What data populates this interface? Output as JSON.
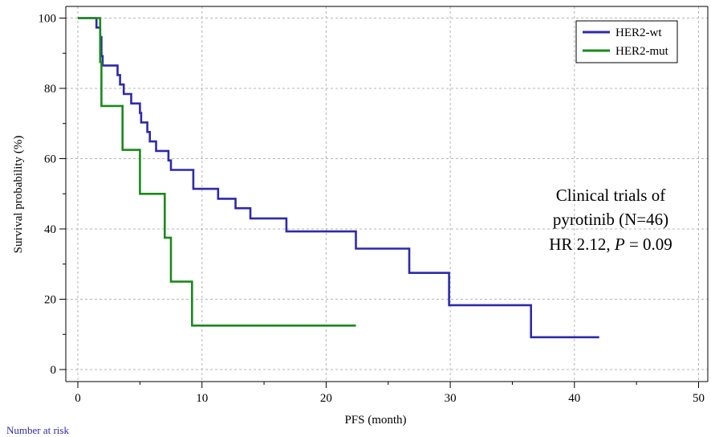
{
  "chart_data": {
    "type": "line",
    "subtype": "kaplan-meier step",
    "xlabel": "PFS (month)",
    "ylabel": "Survival probability (%)",
    "xlim": [
      0,
      50
    ],
    "ylim": [
      0,
      100
    ],
    "xticks": [
      "0",
      "10",
      "20",
      "30",
      "40",
      "50"
    ],
    "yticks": [
      "0",
      "20",
      "40",
      "60",
      "80",
      "100"
    ],
    "grid": true,
    "legend_position": "top-right",
    "annotation": {
      "line1": "Clinical trials of",
      "line2": "pyrotinib (N=46)",
      "line3_prefix": "HR 2.12, ",
      "line3_italic": "P",
      "line3_suffix": " = 0.09"
    },
    "series": [
      {
        "name": "HER2-wt",
        "color": "#2e2aa8",
        "points": [
          [
            0,
            100
          ],
          [
            1.5,
            100
          ],
          [
            1.5,
            97.3
          ],
          [
            1.8,
            97.3
          ],
          [
            1.8,
            94.6
          ],
          [
            1.9,
            94.6
          ],
          [
            1.9,
            89.2
          ],
          [
            2.0,
            89.2
          ],
          [
            2.0,
            86.5
          ],
          [
            3.2,
            86.5
          ],
          [
            3.2,
            83.8
          ],
          [
            3.4,
            83.8
          ],
          [
            3.4,
            81.1
          ],
          [
            3.7,
            81.1
          ],
          [
            3.7,
            78.4
          ],
          [
            4.3,
            78.4
          ],
          [
            4.3,
            75.7
          ],
          [
            5.0,
            75.7
          ],
          [
            5.0,
            73.0
          ],
          [
            5.1,
            73.0
          ],
          [
            5.1,
            70.3
          ],
          [
            5.6,
            70.3
          ],
          [
            5.6,
            67.6
          ],
          [
            5.8,
            67.6
          ],
          [
            5.8,
            64.9
          ],
          [
            6.3,
            64.9
          ],
          [
            6.3,
            62.2
          ],
          [
            7.3,
            62.2
          ],
          [
            7.3,
            59.5
          ],
          [
            7.5,
            59.5
          ],
          [
            7.5,
            56.8
          ],
          [
            9.3,
            56.8
          ],
          [
            9.3,
            51.4
          ],
          [
            11.3,
            51.4
          ],
          [
            11.3,
            48.6
          ],
          [
            12.7,
            48.6
          ],
          [
            12.7,
            45.9
          ],
          [
            13.9,
            45.9
          ],
          [
            13.9,
            43.0
          ],
          [
            16.8,
            43.0
          ],
          [
            16.8,
            39.3
          ],
          [
            22.4,
            39.3
          ],
          [
            22.4,
            34.4
          ],
          [
            26.7,
            34.4
          ],
          [
            26.7,
            27.5
          ],
          [
            29.9,
            27.5
          ],
          [
            29.9,
            18.3
          ],
          [
            36.5,
            18.3
          ],
          [
            36.5,
            9.2
          ],
          [
            42,
            9.2
          ]
        ]
      },
      {
        "name": "HER2-mut",
        "color": "#1a8a1a",
        "points": [
          [
            0,
            100
          ],
          [
            1.8,
            100
          ],
          [
            1.8,
            87.5
          ],
          [
            1.9,
            87.5
          ],
          [
            1.9,
            75.0
          ],
          [
            3.6,
            75.0
          ],
          [
            3.6,
            62.5
          ],
          [
            5.0,
            62.5
          ],
          [
            5.0,
            50.0
          ],
          [
            7.0,
            50.0
          ],
          [
            7.0,
            37.5
          ],
          [
            7.5,
            37.5
          ],
          [
            7.5,
            25.0
          ],
          [
            9.2,
            25.0
          ],
          [
            9.2,
            12.5
          ],
          [
            22.4,
            12.5
          ]
        ]
      }
    ]
  },
  "footer": {
    "number_at_risk": "Number at risk"
  }
}
